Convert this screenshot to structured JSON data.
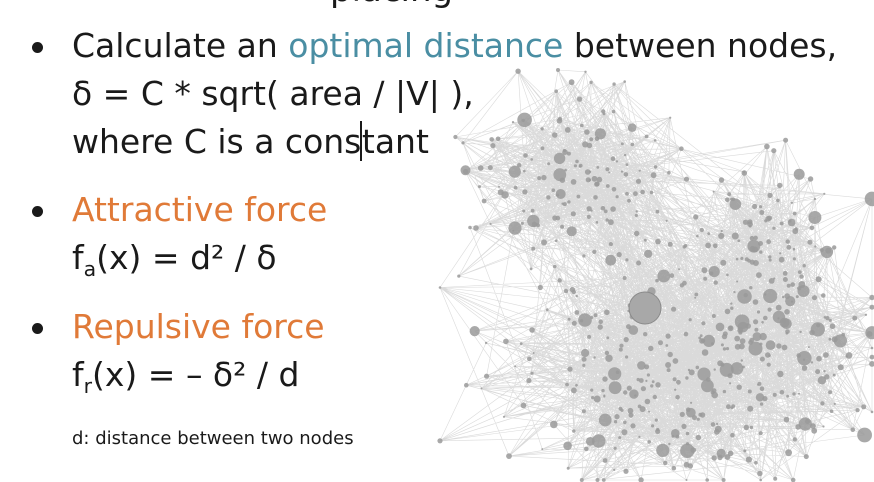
{
  "slide": {
    "top_cut_text": "placing",
    "bullet1": {
      "prefix": "Calculate an ",
      "highlight": "optimal distance",
      "suffix": " between nodes,",
      "line2": "δ = C * sqrt( area / |V| ),",
      "line3_a": "where C is a cons",
      "line3_b": "tant"
    },
    "bullet2": {
      "title": "Attractive force",
      "formula_f": "f",
      "formula_sub": "a",
      "formula_rest": "(x) = d² / δ"
    },
    "bullet3": {
      "title": "Repulsive force",
      "formula_f": "f",
      "formula_sub": "r",
      "formula_rest": "(x) = – δ² / d"
    },
    "footnote": "d: distance between two nodes"
  },
  "colors": {
    "highlight_blue": "#4a8ea3",
    "highlight_orange": "#e07a38",
    "text": "#1a1a1a",
    "graph_edge": "#555555",
    "graph_node": "#9a9a9a"
  },
  "icons": [
    "bullet-dot"
  ]
}
